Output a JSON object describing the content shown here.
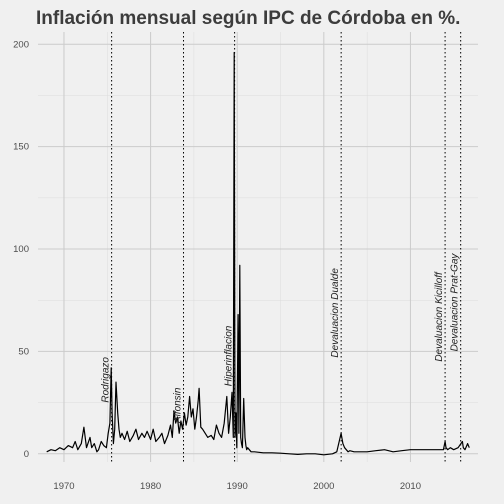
{
  "chart_data": {
    "type": "line",
    "title": "Inflación mensual según IPC de Córdoba en %.",
    "xlabel": "",
    "ylabel": "",
    "xlim": [
      1967.0,
      2017.8
    ],
    "ylim": [
      -4,
      206
    ],
    "x_ticks": [
      1970,
      1980,
      1990,
      2000,
      2010
    ],
    "y_ticks": [
      0,
      50,
      100,
      150,
      200
    ],
    "grid": true,
    "line_color": "#000000",
    "series": [
      {
        "x": [
          1968.0,
          1968.5,
          1969.0,
          1969.5,
          1970.0,
          1970.5,
          1971.0,
          1971.3,
          1971.6,
          1972.0,
          1972.3,
          1972.6,
          1973.0,
          1973.2,
          1973.5,
          1973.8,
          1974.0,
          1974.3,
          1974.6,
          1974.9,
          1975.1,
          1975.3,
          1975.45,
          1975.55,
          1975.7,
          1975.85,
          1976.0,
          1976.2,
          1976.35,
          1976.5,
          1976.7,
          1977.0,
          1977.3,
          1977.6,
          1978.0,
          1978.3,
          1978.6,
          1979.0,
          1979.3,
          1979.6,
          1980.0,
          1980.3,
          1980.6,
          1981.0,
          1981.3,
          1981.6,
          1982.0,
          1982.3,
          1982.5,
          1982.7,
          1982.9,
          1983.1,
          1983.3,
          1983.5,
          1983.7,
          1983.9,
          1984.1,
          1984.3,
          1984.5,
          1984.7,
          1984.9,
          1985.1,
          1985.3,
          1985.5,
          1985.6,
          1985.8,
          1986.0,
          1986.3,
          1986.6,
          1987.0,
          1987.3,
          1987.6,
          1987.9,
          1988.2,
          1988.5,
          1988.8,
          1989.0,
          1989.2,
          1989.4,
          1989.55,
          1989.65,
          1989.75,
          1989.85,
          1989.95,
          1990.1,
          1990.2,
          1990.3,
          1990.4,
          1990.5,
          1990.6,
          1990.75,
          1990.9,
          1991.0,
          1991.1,
          1991.2,
          1991.4,
          1991.6,
          1992.0,
          1993.0,
          1994.0,
          1995.0,
          1996.0,
          1997.0,
          1998.0,
          1999.0,
          2000.0,
          2001.0,
          2001.5,
          2002.0,
          2002.2,
          2002.4,
          2002.6,
          2002.8,
          2003.0,
          2003.5,
          2004.0,
          2005.0,
          2006.0,
          2007.0,
          2008.0,
          2009.0,
          2010.0,
          2011.0,
          2012.0,
          2013.0,
          2013.8,
          2014.0,
          2014.1,
          2014.3,
          2014.6,
          2015.0,
          2015.5,
          2016.0,
          2016.1,
          2016.3,
          2016.6,
          2016.8
        ],
        "values": [
          1,
          2,
          1.5,
          3,
          2,
          4,
          3,
          6,
          2,
          5,
          13,
          3,
          8,
          3,
          5,
          1,
          2,
          6,
          4,
          3,
          10,
          15,
          42,
          20,
          5,
          12,
          35,
          20,
          12,
          8,
          10,
          7,
          11,
          6,
          9,
          12,
          7,
          10,
          8,
          11,
          7,
          12,
          6,
          8,
          10,
          5,
          9,
          14,
          8,
          21,
          15,
          18,
          10,
          16,
          12,
          20,
          14,
          18,
          28,
          18,
          22,
          12,
          18,
          26,
          32,
          13,
          12,
          10,
          8,
          9,
          7,
          14,
          10,
          8,
          15,
          28,
          10,
          18,
          30,
          8,
          196,
          8,
          20,
          3,
          68,
          10,
          92,
          8,
          5,
          3,
          27,
          8,
          4,
          2,
          3,
          2,
          1,
          1,
          0.5,
          0.5,
          0.3,
          0,
          -0.3,
          0,
          0,
          -0.5,
          0,
          1,
          10,
          5,
          3,
          2,
          1,
          1.5,
          1,
          1,
          1,
          1.5,
          2,
          1,
          1.5,
          2,
          2,
          2,
          2,
          2,
          6,
          3,
          2,
          3,
          2,
          3,
          6,
          3,
          2,
          5,
          3
        ]
      }
    ],
    "annotations": [
      {
        "label": "Rodrigazo",
        "x": 1975.5,
        "label_y": 25
      },
      {
        "label": "Alfonsin",
        "x": 1983.8,
        "label_y": 15
      },
      {
        "label": "Hiperinflacion",
        "x": 1989.7,
        "label_y": 33
      },
      {
        "label": "Devaluacion Dualde",
        "x": 2002.0,
        "label_y": 47
      },
      {
        "label": "Devaluacion Kicilloff",
        "x": 2014.0,
        "label_y": 45
      },
      {
        "label": "Devaluacion  Prat-Gay",
        "x": 2015.8,
        "label_y": 50
      }
    ]
  }
}
